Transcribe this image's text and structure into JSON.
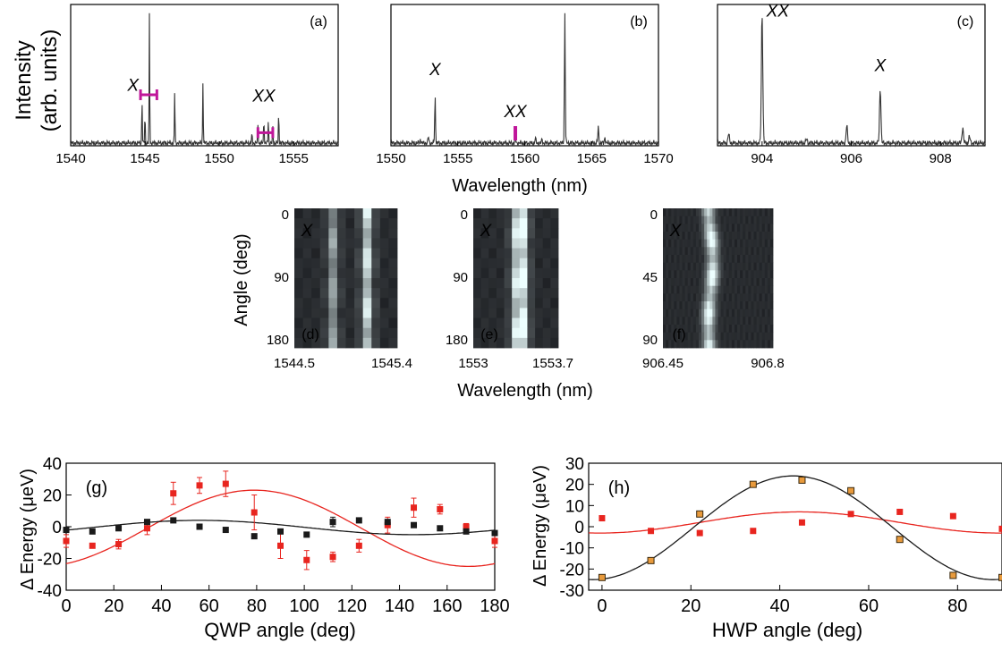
{
  "labels": {
    "spectra_ylabel_line1": "Intensity",
    "spectra_ylabel_line2": "(arb. units)",
    "spectra_xlabel": "Wavelength (nm)",
    "maps_ylabel": "Angle (deg)",
    "maps_xlabel": "Wavelength (nm)",
    "g_xlabel": "QWP angle (deg)",
    "g_ylabel": "Δ Energy (μeV)",
    "h_xlabel": "HWP angle (deg)",
    "h_ylabel": "Δ Energy (μeV)"
  },
  "colors": {
    "red": "#e8251f",
    "black": "#1a1a1a",
    "marker": "#c0169a",
    "orange": "#e89a3c"
  },
  "chart_data": [
    {
      "id": "a",
      "type": "line",
      "panel_label": "(a)",
      "xlim": [
        1540,
        1558
      ],
      "xticks": [
        "1540",
        "1545",
        "1550",
        "1555"
      ],
      "peaks": [
        [
          1544.8,
          0.36
        ],
        [
          1545.0,
          0.22
        ],
        [
          1545.3,
          1.0
        ],
        [
          1547.0,
          0.42
        ],
        [
          1548.9,
          0.48
        ],
        [
          1552.2,
          0.07
        ],
        [
          1552.6,
          0.14
        ],
        [
          1553.0,
          0.2
        ],
        [
          1553.3,
          0.18
        ],
        [
          1553.6,
          0.12
        ],
        [
          1554.0,
          0.24
        ]
      ],
      "annotations": [
        {
          "text": "X",
          "x": 1544.2,
          "y": 0.4
        },
        {
          "text": "XX",
          "x": 1553.0,
          "y": 0.32
        }
      ],
      "markers": [
        {
          "x1": 1544.7,
          "x2": 1545.8,
          "y": 0.37
        },
        {
          "x1": 1552.6,
          "x2": 1553.6,
          "y": 0.08
        }
      ]
    },
    {
      "id": "b",
      "type": "line",
      "panel_label": "(b)",
      "xlim": [
        1550,
        1570
      ],
      "xticks": [
        "1550",
        "1555",
        "1560",
        "1565",
        "1570"
      ],
      "peaks": [
        [
          1552.2,
          0.03
        ],
        [
          1552.8,
          0.05
        ],
        [
          1553.3,
          0.35
        ],
        [
          1559.3,
          0.05
        ],
        [
          1560.8,
          0.04
        ],
        [
          1561.3,
          0.03
        ],
        [
          1563.0,
          1.0
        ],
        [
          1565.5,
          0.13
        ],
        [
          1566.0,
          0.05
        ]
      ],
      "annotations": [
        {
          "text": "X",
          "x": 1553.3,
          "y": 0.52
        },
        {
          "text": "XX",
          "x": 1559.3,
          "y": 0.2
        }
      ],
      "markers": [
        {
          "x": 1559.3,
          "y1": 0.02,
          "y2": 0.13
        }
      ]
    },
    {
      "id": "c",
      "type": "line",
      "panel_label": "(c)",
      "xlim": [
        903,
        909
      ],
      "xticks": [
        "904",
        "906",
        "908"
      ],
      "peaks": [
        [
          903.25,
          0.07
        ],
        [
          904.0,
          1.0
        ],
        [
          905.0,
          0.03
        ],
        [
          905.9,
          0.13
        ],
        [
          906.65,
          0.42
        ],
        [
          908.5,
          0.12
        ],
        [
          908.65,
          0.05
        ]
      ],
      "annotations": [
        {
          "text": "XX",
          "x": 904.35,
          "y": 0.97
        },
        {
          "text": "X",
          "x": 906.65,
          "y": 0.55
        }
      ]
    },
    {
      "id": "d",
      "type": "heatmap",
      "panel_label": "(d)",
      "annotation": "X",
      "xticks": [
        "1544.5",
        "1545.4"
      ],
      "yticks": [
        "0",
        "90",
        "180"
      ],
      "ylim": [
        0,
        180
      ],
      "columns": 12,
      "rows": 14,
      "bright_columns": [
        [
          4,
          0.55
        ],
        [
          8,
          0.85
        ]
      ],
      "band_shift": [
        0,
        0,
        0,
        0,
        0,
        0,
        0,
        0,
        0,
        0,
        0,
        0,
        0,
        0
      ]
    },
    {
      "id": "e",
      "type": "heatmap",
      "panel_label": "(e)",
      "annotation": "X",
      "xticks": [
        "1553",
        "1553.7"
      ],
      "yticks": [
        "0",
        "90",
        "180"
      ],
      "ylim": [
        0,
        180
      ],
      "columns": 11,
      "rows": 14,
      "bright_columns": [
        [
          5,
          0.75
        ],
        [
          6,
          0.95
        ]
      ],
      "band_shift": [
        0,
        0,
        0,
        0,
        0,
        0,
        0,
        0,
        0,
        0,
        0,
        0,
        0,
        0
      ]
    },
    {
      "id": "f",
      "type": "heatmap",
      "panel_label": "(f)",
      "annotation": "X",
      "xticks": [
        "906.45",
        "906.8"
      ],
      "yticks": [
        "0",
        "45",
        "90"
      ],
      "ylim": [
        0,
        90
      ],
      "columns": 40,
      "rows": 18,
      "bright_columns": [
        [
          16,
          1.0
        ]
      ],
      "band_shift": [
        0,
        0.3,
        0.6,
        1.0,
        1.3,
        1.5,
        1.6,
        1.6,
        1.5,
        1.3,
        1.0,
        0.6,
        0.3,
        0.2,
        0.1,
        0.1,
        0.2,
        0.3
      ]
    },
    {
      "id": "g",
      "type": "scatter",
      "panel_label": "(g)",
      "xlabel": "QWP angle (deg)",
      "ylabel": "Δ Energy (μeV)",
      "xlim": [
        0,
        180
      ],
      "ylim": [
        -40,
        40
      ],
      "xticks": [
        0,
        20,
        40,
        60,
        80,
        100,
        120,
        140,
        160,
        180
      ],
      "yticks": [
        -40,
        -20,
        0,
        20,
        40
      ],
      "series": [
        {
          "color": "red",
          "x": [
            0,
            11,
            22,
            34,
            45,
            56,
            67,
            79,
            90,
            101,
            112,
            123,
            135,
            146,
            157,
            168,
            180
          ],
          "y": [
            -9,
            -12,
            -11,
            -1,
            21,
            26,
            27,
            9,
            -12,
            -21,
            -19,
            -12,
            1,
            12,
            11,
            0,
            -9
          ],
          "err": [
            4,
            1,
            3,
            4,
            7,
            5,
            8,
            11,
            8,
            6,
            3,
            4,
            5,
            6,
            3,
            2,
            4
          ]
        },
        {
          "color": "black",
          "x": [
            0,
            11,
            22,
            34,
            45,
            56,
            67,
            79,
            90,
            101,
            112,
            123,
            135,
            146,
            157,
            168,
            180
          ],
          "y": [
            -2,
            -3,
            -1,
            3,
            4,
            0,
            -2,
            -6,
            -3,
            -5,
            3,
            4,
            3,
            1,
            -1,
            -3,
            -4
          ],
          "err": [
            1,
            1,
            1,
            1,
            1,
            1,
            1,
            1,
            1,
            1,
            3,
            1,
            1,
            1,
            1,
            1,
            1
          ]
        }
      ]
    },
    {
      "id": "h",
      "type": "scatter",
      "panel_label": "(h)",
      "xlabel": "HWP angle (deg)",
      "ylabel": "Δ Energy (μeV)",
      "xlim": [
        -3,
        90
      ],
      "ylim": [
        -30,
        30
      ],
      "xticks": [
        0,
        20,
        40,
        60,
        80
      ],
      "yticks": [
        -30,
        -20,
        -10,
        0,
        10,
        20,
        30
      ],
      "series": [
        {
          "color": "red",
          "x": [
            0,
            11,
            22,
            34,
            45,
            56,
            67,
            79,
            90
          ],
          "y": [
            4,
            -2,
            -3,
            -2,
            2,
            6,
            7,
            5,
            -1
          ]
        },
        {
          "color": "orange",
          "x": [
            0,
            11,
            22,
            34,
            45,
            56,
            67,
            79,
            90
          ],
          "y": [
            -24,
            -16,
            6,
            20,
            22,
            17,
            -6,
            -23,
            -24
          ]
        }
      ]
    }
  ]
}
